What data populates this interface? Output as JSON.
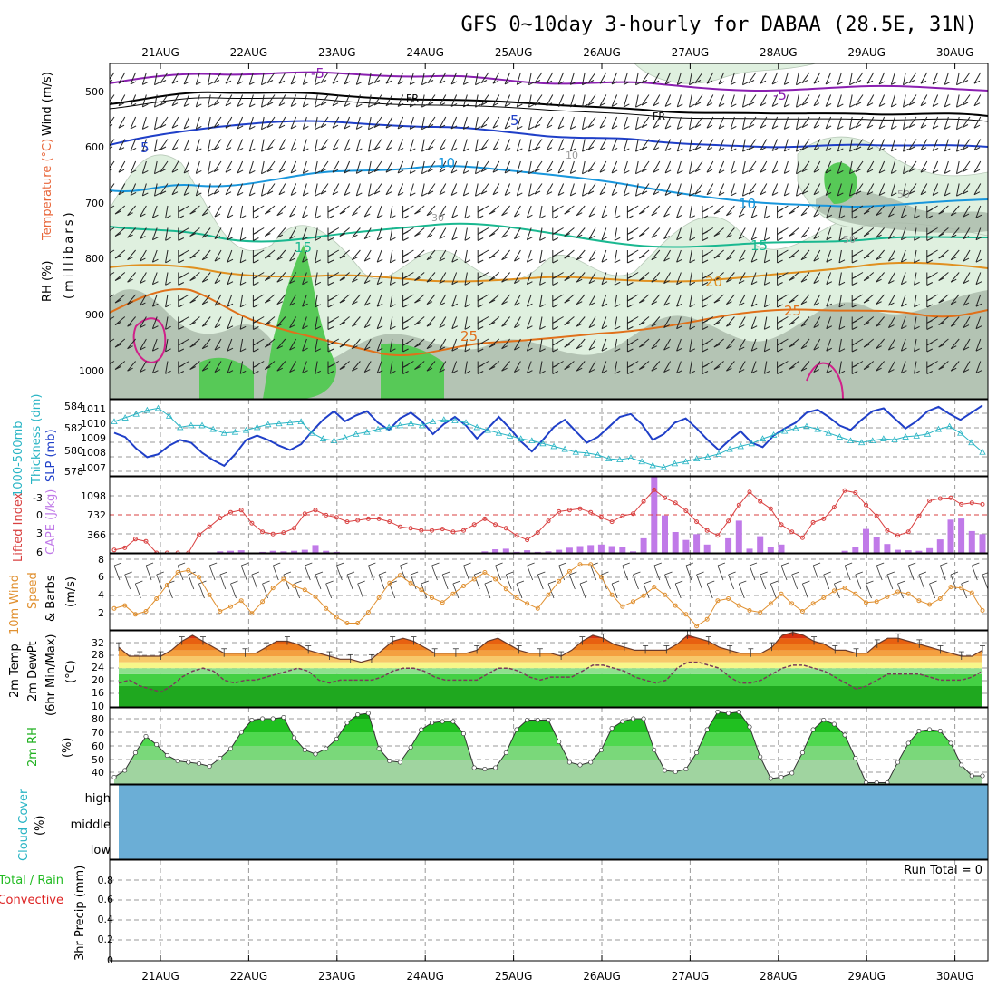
{
  "title": "GFS 0~10day 3-hourly for DABAA (28.5E, 31N)",
  "dates": [
    "21AUG",
    "22AUG",
    "23AUG",
    "24AUG",
    "25AUG",
    "26AUG",
    "27AUG",
    "28AUG",
    "29AUG",
    "30AUG"
  ],
  "colors": {
    "rh_green": "#57c957",
    "rh_dark": "#9aaa9a",
    "wind_label": "#000000",
    "temp_label": "#e8663a",
    "rh_label_bg": "#22bb22",
    "slp": "#1f3fc8",
    "thickness": "#28b4c4",
    "cape": "#c07ae8",
    "lifted_index": "#d94040",
    "wind10m": "#e09030",
    "temp2m": "#6a3a2a",
    "dewpt2m": "#7a3a5a",
    "rh2m": "#20b020",
    "cloud": "#6baed6",
    "rain_label": "#22bb22",
    "convective_label": "#dd2222"
  },
  "panels": {
    "upper": {
      "labels": [
        "Wind (m/s)",
        "Temperature (°C)",
        "RH (%)",
        "(millibars)"
      ],
      "yticks": [
        "500",
        "600",
        "700",
        "800",
        "900",
        "1000"
      ],
      "contour_labels": [
        "-5",
        "FR",
        "5",
        "10",
        "15",
        "20",
        "25",
        "10",
        "30",
        "50",
        "60"
      ]
    },
    "slp": {
      "labels": [
        "1000-500mb",
        "Thickness (dm)",
        "SLP (mb)"
      ],
      "thick_ticks": [
        "584",
        "582",
        "580",
        "578"
      ],
      "slp_ticks": [
        "1011",
        "1010",
        "1009",
        "1008",
        "1007"
      ]
    },
    "cape": {
      "labels": [
        "Lifted Index",
        "CAPE (J/kg)"
      ],
      "li_ticks": [
        "-3",
        "0",
        "3",
        "6"
      ],
      "cape_ticks": [
        "1098",
        "732",
        "366"
      ]
    },
    "wind10": {
      "labels": [
        "10m Wind",
        "Speed",
        "& Barbs",
        "(m/s)"
      ],
      "yticks": [
        "8",
        "6",
        "4",
        "2"
      ]
    },
    "temp2m": {
      "labels": [
        "2m Temp",
        "2m DewPt",
        "(6hr Min/Max)",
        "(°C)"
      ],
      "yticks": [
        "32",
        "28",
        "24",
        "20",
        "16",
        "10"
      ]
    },
    "rh2m": {
      "labels": [
        "2m RH",
        "(%)"
      ],
      "yticks": [
        "80",
        "70",
        "60",
        "50",
        "40"
      ]
    },
    "cloud": {
      "labels": [
        "Cloud Cover",
        "(%)"
      ],
      "levels": [
        "high",
        "middle",
        "low"
      ]
    },
    "precip": {
      "labels": [
        "Total / Rain",
        "Convective",
        "3hr Precip (mm)"
      ],
      "yticks": [
        "0.8",
        "0.6",
        "0.4",
        "0.2",
        "0"
      ],
      "run_total": "Run Total = 0"
    }
  },
  "chart_data": [
    {
      "type": "line",
      "name": "slp",
      "ylabel": "SLP (mb)",
      "ylim": [
        1006.5,
        1011.8
      ],
      "x": [
        0,
        1,
        2,
        3,
        4,
        5,
        6,
        7,
        8,
        9,
        10,
        11,
        12,
        13,
        14,
        15,
        16,
        17,
        18,
        19,
        20,
        21,
        22,
        23,
        24,
        25,
        26,
        27,
        28,
        29,
        30,
        31,
        32,
        33,
        34,
        35,
        36,
        37,
        38,
        39,
        40,
        41,
        42,
        43,
        44,
        45,
        46,
        47,
        48,
        49,
        50,
        51,
        52,
        53,
        54,
        55,
        56,
        57,
        58,
        59,
        60,
        61,
        62,
        63,
        64,
        65,
        66,
        67,
        68,
        69,
        70,
        71,
        72,
        73,
        74,
        75,
        76,
        77,
        78,
        79
      ],
      "values": [
        1009.5,
        1009.2,
        1008.4,
        1007.8,
        1008.0,
        1008.6,
        1009.0,
        1008.8,
        1008.1,
        1007.6,
        1007.2,
        1008.0,
        1009.0,
        1009.3,
        1009.0,
        1008.6,
        1008.3,
        1008.7,
        1009.6,
        1010.4,
        1011.0,
        1010.3,
        1010.7,
        1011.0,
        1010.2,
        1009.7,
        1010.5,
        1010.9,
        1010.3,
        1009.4,
        1010.1,
        1010.6,
        1010.0,
        1009.1,
        1009.8,
        1010.6,
        1009.8,
        1008.9,
        1008.2,
        1009.0,
        1009.9,
        1010.4,
        1009.6,
        1008.8,
        1009.2,
        1009.9,
        1010.6,
        1010.8,
        1010.1,
        1009.0,
        1009.4,
        1010.2,
        1010.5,
        1009.8,
        1009.0,
        1008.3,
        1009.0,
        1009.6,
        1008.8,
        1008.5,
        1009.3,
        1009.8,
        1010.2,
        1010.9,
        1011.1,
        1010.6,
        1010.0,
        1009.7,
        1010.4,
        1011.0,
        1011.2,
        1010.5,
        1009.8,
        1010.3,
        1011.0,
        1011.3,
        1010.8,
        1010.4,
        1010.9,
        1011.4
      ]
    },
    {
      "type": "line",
      "name": "thickness",
      "ylabel": "1000-500mb Thickness (dm)",
      "ylim": [
        577.5,
        585.5
      ],
      "x": [
        0,
        1,
        2,
        3,
        4,
        5,
        6,
        7,
        8,
        9,
        10,
        11,
        12,
        13,
        14,
        15,
        16,
        17,
        18,
        19,
        20,
        21,
        22,
        23,
        24,
        25,
        26,
        27,
        28,
        29,
        30,
        31,
        32,
        33,
        34,
        35,
        36,
        37,
        38,
        39,
        40,
        41,
        42,
        43,
        44,
        45,
        46,
        47,
        48,
        49,
        50,
        51,
        52,
        53,
        54,
        55,
        56,
        57,
        58,
        59,
        60,
        61,
        62,
        63,
        64,
        65,
        66,
        67,
        68,
        69,
        70,
        71,
        72,
        73,
        74,
        75,
        76,
        77,
        78,
        79
      ],
      "values": [
        583.2,
        583.6,
        584.0,
        584.4,
        584.6,
        583.8,
        582.6,
        582.8,
        582.8,
        582.4,
        582.0,
        582.1,
        582.3,
        582.6,
        582.9,
        583.0,
        583.1,
        583.2,
        582.0,
        581.4,
        581.2,
        581.5,
        581.9,
        582.1,
        582.4,
        582.6,
        582.8,
        583.0,
        582.8,
        583.2,
        583.4,
        583.3,
        583.1,
        582.6,
        582.3,
        582.0,
        581.7,
        581.4,
        581.2,
        580.9,
        580.6,
        580.3,
        580.0,
        579.9,
        579.7,
        579.3,
        579.2,
        579.4,
        579.0,
        578.6,
        578.4,
        578.8,
        579.0,
        579.3,
        579.5,
        579.8,
        580.3,
        580.6,
        580.9,
        581.4,
        581.8,
        582.2,
        582.5,
        582.7,
        582.4,
        582.0,
        581.6,
        581.2,
        581.0,
        581.2,
        581.4,
        581.3,
        581.6,
        581.7,
        581.9,
        582.4,
        582.7,
        582.0,
        581.0,
        580.0
      ]
    },
    {
      "type": "bar",
      "name": "cape",
      "ylabel": "CAPE (J/kg)",
      "ylim": [
        0,
        1464
      ],
      "values": [
        0,
        0,
        0,
        0,
        0,
        0,
        0,
        0,
        0,
        0,
        30,
        40,
        50,
        0,
        20,
        40,
        30,
        40,
        60,
        150,
        40,
        20,
        0,
        0,
        0,
        0,
        0,
        0,
        0,
        10,
        0,
        0,
        0,
        0,
        0,
        30,
        70,
        80,
        20,
        50,
        20,
        30,
        60,
        100,
        130,
        150,
        160,
        130,
        110,
        30,
        280,
        1460,
        720,
        400,
        250,
        360,
        160,
        0,
        280,
        620,
        80,
        320,
        120,
        160,
        0,
        0,
        0,
        0,
        0,
        40,
        110,
        460,
        300,
        170,
        60,
        50,
        40,
        90,
        260,
        640,
        660,
        420,
        360
      ]
    },
    {
      "type": "line",
      "name": "lifted_index",
      "ylabel": "Lifted Index",
      "ylim": [
        -4.5,
        6
      ],
      "values": [
        5.6,
        5.3,
        4.1,
        4.4,
        6.0,
        6.0,
        6.0,
        6.0,
        3.5,
        2.4,
        1.2,
        0.4,
        0.1,
        1.9,
        3.1,
        3.4,
        3.2,
        2.6,
        0.6,
        0.1,
        0.8,
        1.1,
        1.7,
        1.5,
        1.3,
        1.3,
        1.7,
        2.4,
        2.6,
        2.9,
        2.9,
        2.7,
        3.1,
        2.9,
        2.1,
        1.3,
        2.1,
        2.6,
        3.6,
        4.2,
        3.2,
        1.6,
        0.3,
        0.1,
        -0.1,
        0.4,
        1.1,
        1.7,
        0.9,
        0.6,
        -1.1,
        -2.7,
        -1.6,
        -0.9,
        0.2,
        1.7,
        2.9,
        3.6,
        1.6,
        -0.6,
        -2.4,
        -1.1,
        -0.1,
        2.1,
        3.1,
        3.9,
        1.8,
        1.3,
        -0.3,
        -2.6,
        -2.3,
        -0.6,
        0.9,
        2.9,
        3.6,
        3.1,
        0.9,
        -1.2,
        -1.5,
        -1.6,
        -0.7,
        -0.9,
        -0.7
      ]
    },
    {
      "type": "line",
      "name": "wind10m",
      "ylabel": "10m Wind Speed (m/s)",
      "ylim": [
        0.8,
        8.6
      ],
      "values": [
        3.0,
        3.3,
        2.4,
        2.7,
        4.0,
        5.4,
        6.7,
        6.9,
        6.2,
        4.4,
        2.7,
        3.2,
        3.8,
        2.5,
        3.7,
        5.1,
        6.0,
        5.3,
        4.9,
        4.2,
        3.0,
        2.1,
        1.5,
        1.5,
        2.6,
        4.1,
        5.6,
        6.4,
        5.6,
        4.9,
        4.1,
        3.6,
        4.5,
        5.3,
        6.0,
        6.7,
        6.0,
        5.0,
        4.1,
        3.5,
        3.0,
        4.4,
        5.8,
        6.8,
        7.5,
        7.5,
        6.2,
        4.4,
        3.2,
        3.7,
        4.3,
        5.2,
        4.4,
        3.3,
        2.4,
        1.2,
        1.9,
        3.8,
        4.0,
        3.3,
        2.8,
        2.6,
        3.5,
        4.5,
        3.5,
        2.7,
        3.5,
        4.1,
        4.8,
        5.1,
        4.5,
        3.6,
        3.7,
        4.2,
        4.7,
        4.5,
        3.8,
        3.4,
        4.0,
        5.2,
        5.1,
        4.6,
        2.8
      ]
    },
    {
      "type": "line",
      "name": "temp2m",
      "ylabel": "2m Temp (°C)",
      "ylim": [
        9,
        34.5
      ],
      "values": [
        29,
        26,
        26,
        26,
        26,
        28,
        31,
        33,
        31,
        29,
        27,
        27,
        27,
        27,
        29,
        31,
        31,
        30,
        28,
        27,
        26,
        25,
        25,
        24,
        25,
        28,
        31,
        32,
        31,
        29,
        27,
        27,
        27,
        27,
        28,
        31,
        32,
        30,
        28,
        27,
        27,
        27,
        26,
        28,
        31,
        33,
        32,
        30,
        29,
        28,
        28,
        28,
        28,
        30,
        33,
        32,
        31,
        29,
        28,
        27,
        27,
        27,
        29,
        33,
        34,
        33,
        31,
        30,
        28,
        28,
        27,
        27,
        30,
        32,
        32,
        31,
        30,
        29,
        28,
        27,
        26,
        26,
        28
      ]
    },
    {
      "type": "line",
      "name": "dewpt2m",
      "ylabel": "2m DewPt (°C)",
      "ylim": [
        9,
        34.5
      ],
      "values": [
        17,
        18,
        16,
        15,
        14,
        16,
        19,
        21,
        22,
        21,
        18,
        17,
        18,
        18,
        19,
        20,
        21,
        22,
        21,
        18,
        17,
        18,
        18,
        18,
        18,
        19,
        21,
        22,
        22,
        21,
        19,
        18,
        18,
        18,
        18,
        20,
        22,
        22,
        21,
        19,
        18,
        19,
        19,
        19,
        21,
        23,
        23,
        22,
        21,
        19,
        18,
        17,
        18,
        22,
        24,
        24,
        23,
        22,
        19,
        17,
        17,
        18,
        20,
        22,
        23,
        23,
        22,
        21,
        19,
        17,
        15,
        16,
        18,
        20,
        20,
        20,
        20,
        19,
        18,
        18,
        18,
        19,
        21
      ]
    },
    {
      "type": "area",
      "name": "rh2m",
      "ylabel": "2m RH (%)",
      "ylim": [
        32,
        88
      ],
      "values": [
        37,
        42,
        55,
        67,
        61,
        53,
        49,
        48,
        47,
        45,
        51,
        58,
        70,
        79,
        80,
        80,
        81,
        66,
        57,
        54,
        58,
        65,
        77,
        83,
        84,
        58,
        49,
        48,
        59,
        72,
        77,
        78,
        78,
        69,
        44,
        43,
        44,
        55,
        72,
        79,
        79,
        79,
        63,
        48,
        46,
        48,
        57,
        73,
        78,
        80,
        80,
        57,
        42,
        41,
        43,
        55,
        72,
        85,
        84,
        85,
        74,
        52,
        36,
        37,
        40,
        55,
        72,
        79,
        76,
        68,
        51,
        33,
        33,
        33,
        48,
        62,
        71,
        72,
        71,
        62,
        46,
        38,
        38
      ]
    },
    {
      "type": "bar",
      "name": "precip_3hr",
      "ylabel": "3hr Precip (mm)",
      "ylim": [
        0,
        0.9
      ],
      "values": [
        0,
        0,
        0,
        0,
        0,
        0,
        0,
        0,
        0,
        0
      ]
    }
  ]
}
